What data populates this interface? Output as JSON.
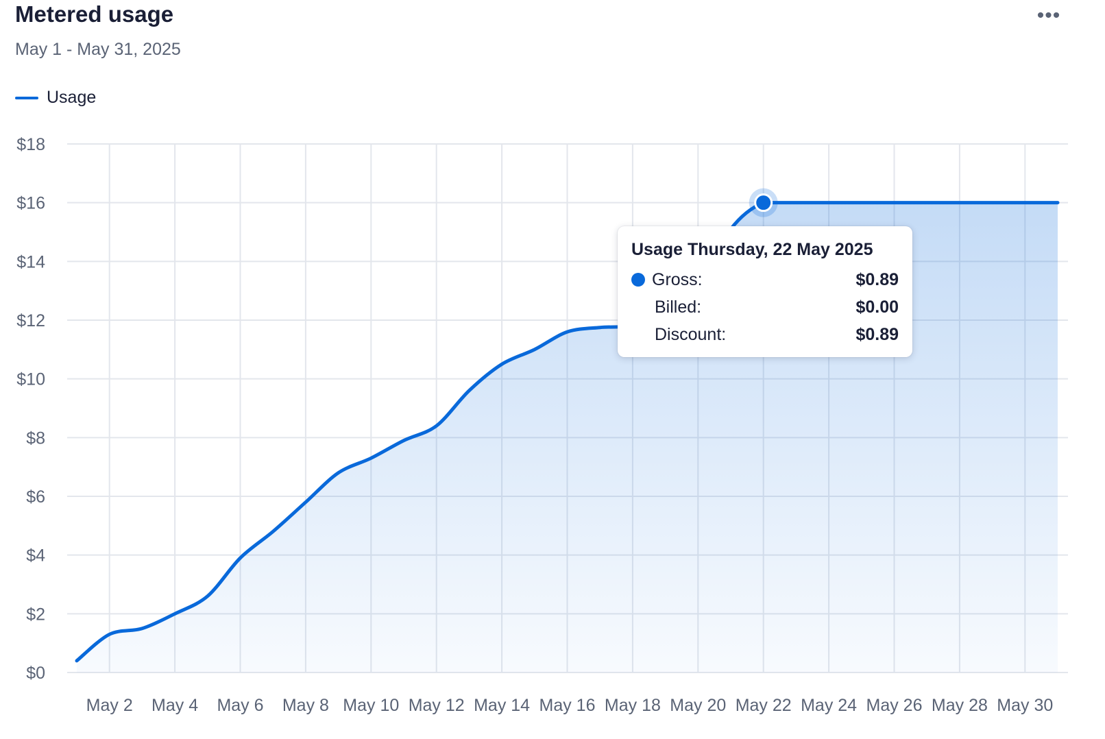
{
  "header": {
    "title": "Metered usage",
    "date_range": "May 1 - May 31, 2025",
    "more_icon": "more-horizontal-icon"
  },
  "legend": {
    "label": "Usage",
    "color": "#0969da"
  },
  "tooltip": {
    "title": "Usage Thursday, 22 May 2025",
    "rows": [
      {
        "label": "Gross:",
        "value": "$0.89",
        "dot_color": "#0969da"
      },
      {
        "label": "Billed:",
        "value": "$0.00"
      },
      {
        "label": "Discount:",
        "value": "$0.89"
      }
    ]
  },
  "chart_data": {
    "type": "area",
    "series": [
      {
        "name": "Usage",
        "color": "#0969da",
        "x": [
          "2025-05-01",
          "2025-05-02",
          "2025-05-03",
          "2025-05-04",
          "2025-05-05",
          "2025-05-06",
          "2025-05-07",
          "2025-05-08",
          "2025-05-09",
          "2025-05-10",
          "2025-05-11",
          "2025-05-12",
          "2025-05-13",
          "2025-05-14",
          "2025-05-15",
          "2025-05-16",
          "2025-05-17",
          "2025-05-18",
          "2025-05-19",
          "2025-05-20",
          "2025-05-21",
          "2025-05-22",
          "2025-05-23",
          "2025-05-24",
          "2025-05-25",
          "2025-05-26",
          "2025-05-27",
          "2025-05-28",
          "2025-05-29",
          "2025-05-30",
          "2025-05-31"
        ],
        "values": [
          0.4,
          1.3,
          1.5,
          2.0,
          2.6,
          3.9,
          4.8,
          5.8,
          6.8,
          7.3,
          7.9,
          8.4,
          9.6,
          10.5,
          11.0,
          11.6,
          11.75,
          11.8,
          12.3,
          13.1,
          15.1,
          16.0,
          16.0,
          16.0,
          16.0,
          16.0,
          16.0,
          16.0,
          16.0,
          16.0,
          16.0
        ]
      }
    ],
    "x_tick_labels": [
      "May 2",
      "May 4",
      "May 6",
      "May 8",
      "May 10",
      "May 12",
      "May 14",
      "May 16",
      "May 18",
      "May 20",
      "May 22",
      "May 24",
      "May 26",
      "May 28",
      "May 30"
    ],
    "y_ticks": [
      0,
      2,
      4,
      6,
      8,
      10,
      12,
      14,
      16,
      18
    ],
    "y_tick_labels": [
      "$0",
      "$2",
      "$4",
      "$6",
      "$8",
      "$10",
      "$12",
      "$14",
      "$16",
      "$18"
    ],
    "ylim": [
      0,
      18
    ],
    "grid": true,
    "legend_position": "top-left",
    "highlight_index": 21
  }
}
